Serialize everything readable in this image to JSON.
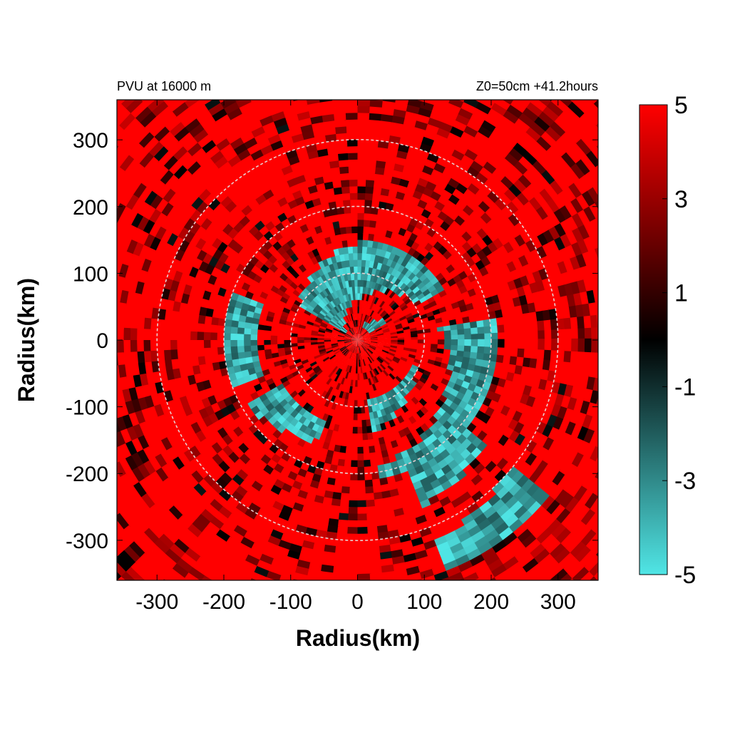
{
  "chart_data": {
    "type": "heatmap",
    "title_left": "PVU at 16000 m",
    "title_right": "Z0=50cm  +41.2hours",
    "xlabel": "Radius(km)",
    "ylabel": "Radius(km)",
    "xlim": [
      -360,
      360
    ],
    "ylim": [
      -360,
      360
    ],
    "x_ticks": [
      -300,
      -200,
      -100,
      0,
      100,
      200,
      300
    ],
    "y_ticks": [
      300,
      200,
      100,
      0,
      -100,
      -200,
      -300
    ],
    "reference_circles_km": [
      100,
      200,
      300
    ],
    "colorbar": {
      "range": [
        -5,
        5
      ],
      "ticks": [
        5,
        3,
        1,
        -1,
        -3,
        -5
      ],
      "colors": [
        "#50e6e6",
        "#000000",
        "#ff0000"
      ]
    },
    "field_description": "Polar field of potential vorticity; mostly positive (red) with negative (cyan) spiral bands concentrated northeast through southeast of center",
    "negative_regions_deg_km": [
      {
        "angle_start": 30,
        "angle_end": 150,
        "r_min": 20,
        "r_max": 150
      },
      {
        "angle_start": -80,
        "angle_end": 10,
        "r_min": 90,
        "r_max": 210
      },
      {
        "angle_start": -70,
        "angle_end": -40,
        "r_min": 180,
        "r_max": 370
      },
      {
        "angle_start": -150,
        "angle_end": -110,
        "r_min": 130,
        "r_max": 220
      },
      {
        "angle_start": 160,
        "angle_end": 200,
        "r_min": 150,
        "r_max": 200
      }
    ]
  }
}
